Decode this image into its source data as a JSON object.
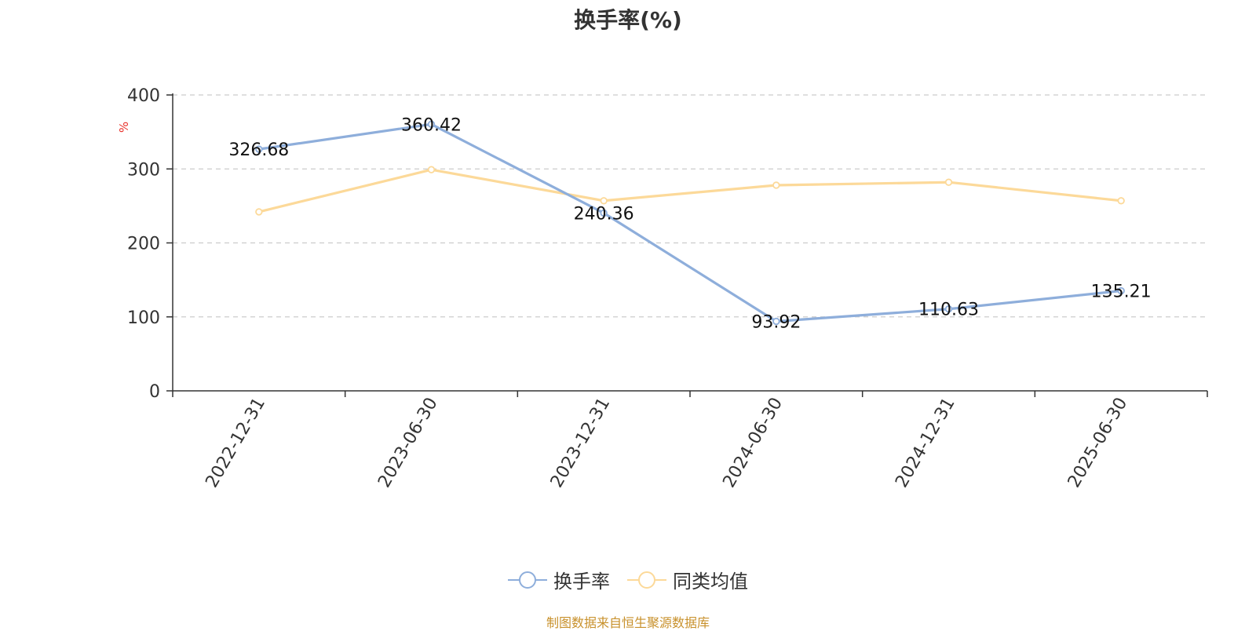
{
  "chart_data": {
    "type": "line",
    "title": "换手率(%)",
    "ylabel": "%",
    "ylim": [
      0,
      400
    ],
    "yticks": [
      0,
      100,
      200,
      300,
      400
    ],
    "grid": true,
    "legend_position": "bottom",
    "categories": [
      "2022-12-31",
      "2023-06-30",
      "2023-12-31",
      "2024-06-30",
      "2024-12-31",
      "2025-06-30"
    ],
    "series": [
      {
        "name": "换手率",
        "color": "#8eaedb",
        "values": [
          326.68,
          360.42,
          240.36,
          93.92,
          110.63,
          135.21
        ],
        "labels": [
          "326.68",
          "360.42",
          "240.36",
          "93.92",
          "110.63",
          "135.21"
        ]
      },
      {
        "name": "同类均值",
        "color": "#fcd999",
        "values": [
          242,
          299,
          257,
          278,
          282,
          257
        ]
      }
    ]
  },
  "footer": "制图数据来自恒生聚源数据库"
}
